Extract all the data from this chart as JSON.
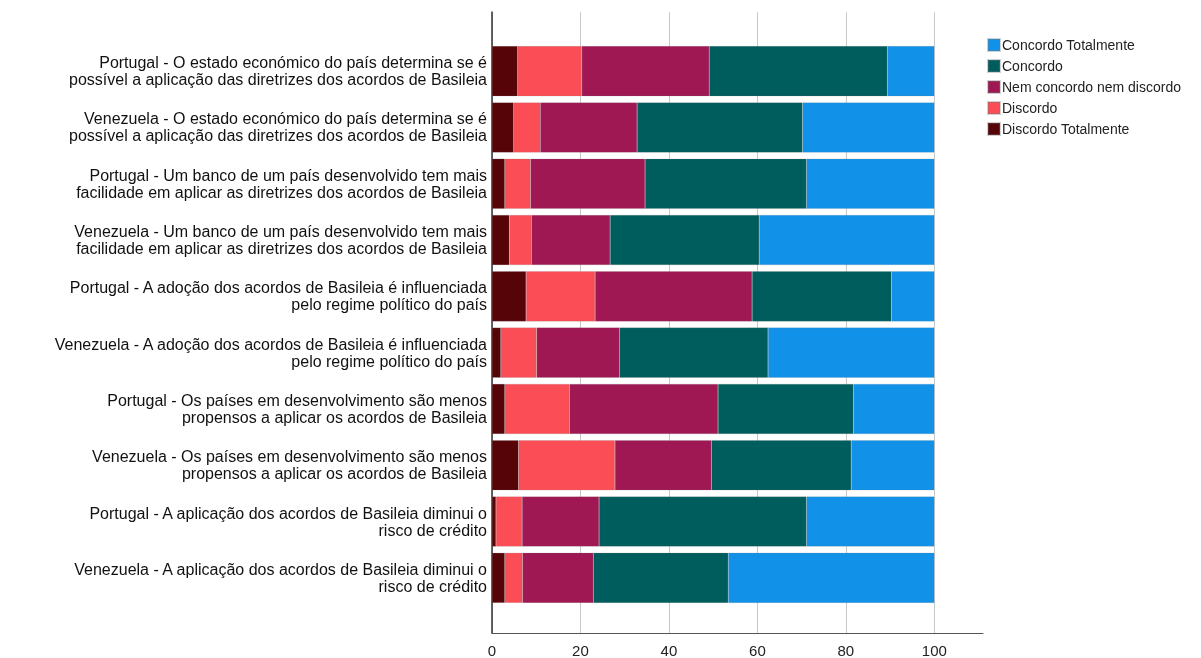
{
  "chart_data": {
    "type": "bar",
    "orientation": "horizontal",
    "stacked": true,
    "categories": [
      "Portugal - O estado económico do país determina se é\npossível a aplicação das diretrizes dos acordos de Basileia",
      "Venezuela - O estado económico do país determina se é\npossível a aplicação das diretrizes dos acordos de Basileia",
      "Portugal - Um banco de um país desenvolvido tem mais\nfacilidade em aplicar as diretrizes dos acordos de Basileia",
      "Venezuela - Um banco de um país desenvolvido tem mais\nfacilidade em aplicar as diretrizes dos acordos de Basileia",
      "Portugal - A adoção dos acordos de Basileia é influenciada\npelo regime político do país",
      "Venezuela - A adoção dos acordos de Basileia é influenciada\npelo regime político do país",
      "Portugal - Os países em desenvolvimento são menos\npropensos a aplicar os acordos de Basileia",
      "Venezuela - Os países em desenvolvimento são menos\npropensos a aplicar os acordos de Basileia",
      "Portugal - A aplicação dos acordos de Basileia diminui o\nrisco de crédito",
      "Venezuela - A aplicação dos acordos de Basileia diminui o\nrisco de crédito"
    ],
    "series": [
      {
        "name": "Discordo Totalmente",
        "color": "#570408",
        "values": [
          5.8,
          4.9,
          2.9,
          3.9,
          7.7,
          2.0,
          2.9,
          6.0,
          0.9,
          2.9
        ]
      },
      {
        "name": "Discordo",
        "color": "#fa4d56",
        "values": [
          14.5,
          6.0,
          5.8,
          5.0,
          15.6,
          8.1,
          14.6,
          21.8,
          5.9,
          4.0
        ]
      },
      {
        "name": "Nem concordo nem discordo",
        "color": "#9f1853",
        "values": [
          28.8,
          21.9,
          25.9,
          17.8,
          35.5,
          18.7,
          33.6,
          21.8,
          17.4,
          16.0
        ]
      },
      {
        "name": "Concordo",
        "color": "#005d5d",
        "values": [
          40.3,
          37.4,
          36.5,
          33.7,
          31.5,
          33.6,
          30.6,
          31.6,
          46.9,
          30.5
        ]
      },
      {
        "name": "Concordo Totalmente",
        "color": "#1192e8",
        "values": [
          10.6,
          29.8,
          28.9,
          39.6,
          9.7,
          37.6,
          18.3,
          18.8,
          28.9,
          46.6
        ]
      }
    ],
    "xlim": [
      0,
      111
    ],
    "xticks": [
      0,
      20,
      40,
      60,
      80,
      100
    ],
    "grid": "x",
    "legend": "top right"
  }
}
